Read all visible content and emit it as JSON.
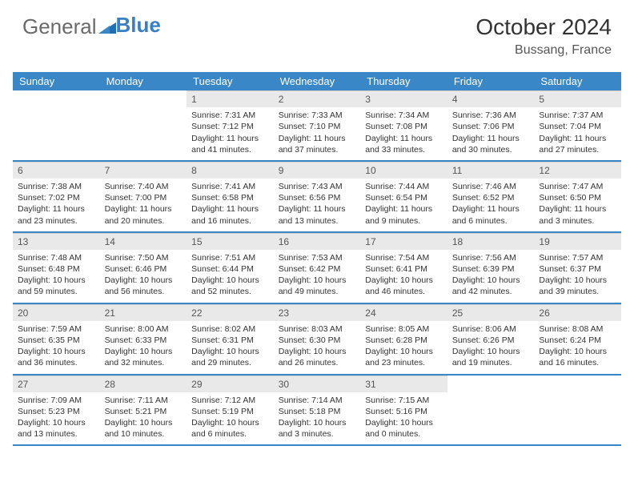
{
  "brand": {
    "part1": "General",
    "part2": "Blue"
  },
  "title": "October 2024",
  "location": "Bussang, France",
  "colors": {
    "header_bg": "#3a87c7",
    "header_text": "#ffffff",
    "daynum_bg": "#e9e9e9",
    "border": "#3a87c7",
    "text": "#333333"
  },
  "day_names": [
    "Sunday",
    "Monday",
    "Tuesday",
    "Wednesday",
    "Thursday",
    "Friday",
    "Saturday"
  ],
  "weeks": [
    [
      null,
      null,
      {
        "n": "1",
        "sr": "Sunrise: 7:31 AM",
        "ss": "Sunset: 7:12 PM",
        "dl": "Daylight: 11 hours and 41 minutes."
      },
      {
        "n": "2",
        "sr": "Sunrise: 7:33 AM",
        "ss": "Sunset: 7:10 PM",
        "dl": "Daylight: 11 hours and 37 minutes."
      },
      {
        "n": "3",
        "sr": "Sunrise: 7:34 AM",
        "ss": "Sunset: 7:08 PM",
        "dl": "Daylight: 11 hours and 33 minutes."
      },
      {
        "n": "4",
        "sr": "Sunrise: 7:36 AM",
        "ss": "Sunset: 7:06 PM",
        "dl": "Daylight: 11 hours and 30 minutes."
      },
      {
        "n": "5",
        "sr": "Sunrise: 7:37 AM",
        "ss": "Sunset: 7:04 PM",
        "dl": "Daylight: 11 hours and 27 minutes."
      }
    ],
    [
      {
        "n": "6",
        "sr": "Sunrise: 7:38 AM",
        "ss": "Sunset: 7:02 PM",
        "dl": "Daylight: 11 hours and 23 minutes."
      },
      {
        "n": "7",
        "sr": "Sunrise: 7:40 AM",
        "ss": "Sunset: 7:00 PM",
        "dl": "Daylight: 11 hours and 20 minutes."
      },
      {
        "n": "8",
        "sr": "Sunrise: 7:41 AM",
        "ss": "Sunset: 6:58 PM",
        "dl": "Daylight: 11 hours and 16 minutes."
      },
      {
        "n": "9",
        "sr": "Sunrise: 7:43 AM",
        "ss": "Sunset: 6:56 PM",
        "dl": "Daylight: 11 hours and 13 minutes."
      },
      {
        "n": "10",
        "sr": "Sunrise: 7:44 AM",
        "ss": "Sunset: 6:54 PM",
        "dl": "Daylight: 11 hours and 9 minutes."
      },
      {
        "n": "11",
        "sr": "Sunrise: 7:46 AM",
        "ss": "Sunset: 6:52 PM",
        "dl": "Daylight: 11 hours and 6 minutes."
      },
      {
        "n": "12",
        "sr": "Sunrise: 7:47 AM",
        "ss": "Sunset: 6:50 PM",
        "dl": "Daylight: 11 hours and 3 minutes."
      }
    ],
    [
      {
        "n": "13",
        "sr": "Sunrise: 7:48 AM",
        "ss": "Sunset: 6:48 PM",
        "dl": "Daylight: 10 hours and 59 minutes."
      },
      {
        "n": "14",
        "sr": "Sunrise: 7:50 AM",
        "ss": "Sunset: 6:46 PM",
        "dl": "Daylight: 10 hours and 56 minutes."
      },
      {
        "n": "15",
        "sr": "Sunrise: 7:51 AM",
        "ss": "Sunset: 6:44 PM",
        "dl": "Daylight: 10 hours and 52 minutes."
      },
      {
        "n": "16",
        "sr": "Sunrise: 7:53 AM",
        "ss": "Sunset: 6:42 PM",
        "dl": "Daylight: 10 hours and 49 minutes."
      },
      {
        "n": "17",
        "sr": "Sunrise: 7:54 AM",
        "ss": "Sunset: 6:41 PM",
        "dl": "Daylight: 10 hours and 46 minutes."
      },
      {
        "n": "18",
        "sr": "Sunrise: 7:56 AM",
        "ss": "Sunset: 6:39 PM",
        "dl": "Daylight: 10 hours and 42 minutes."
      },
      {
        "n": "19",
        "sr": "Sunrise: 7:57 AM",
        "ss": "Sunset: 6:37 PM",
        "dl": "Daylight: 10 hours and 39 minutes."
      }
    ],
    [
      {
        "n": "20",
        "sr": "Sunrise: 7:59 AM",
        "ss": "Sunset: 6:35 PM",
        "dl": "Daylight: 10 hours and 36 minutes."
      },
      {
        "n": "21",
        "sr": "Sunrise: 8:00 AM",
        "ss": "Sunset: 6:33 PM",
        "dl": "Daylight: 10 hours and 32 minutes."
      },
      {
        "n": "22",
        "sr": "Sunrise: 8:02 AM",
        "ss": "Sunset: 6:31 PM",
        "dl": "Daylight: 10 hours and 29 minutes."
      },
      {
        "n": "23",
        "sr": "Sunrise: 8:03 AM",
        "ss": "Sunset: 6:30 PM",
        "dl": "Daylight: 10 hours and 26 minutes."
      },
      {
        "n": "24",
        "sr": "Sunrise: 8:05 AM",
        "ss": "Sunset: 6:28 PM",
        "dl": "Daylight: 10 hours and 23 minutes."
      },
      {
        "n": "25",
        "sr": "Sunrise: 8:06 AM",
        "ss": "Sunset: 6:26 PM",
        "dl": "Daylight: 10 hours and 19 minutes."
      },
      {
        "n": "26",
        "sr": "Sunrise: 8:08 AM",
        "ss": "Sunset: 6:24 PM",
        "dl": "Daylight: 10 hours and 16 minutes."
      }
    ],
    [
      {
        "n": "27",
        "sr": "Sunrise: 7:09 AM",
        "ss": "Sunset: 5:23 PM",
        "dl": "Daylight: 10 hours and 13 minutes."
      },
      {
        "n": "28",
        "sr": "Sunrise: 7:11 AM",
        "ss": "Sunset: 5:21 PM",
        "dl": "Daylight: 10 hours and 10 minutes."
      },
      {
        "n": "29",
        "sr": "Sunrise: 7:12 AM",
        "ss": "Sunset: 5:19 PM",
        "dl": "Daylight: 10 hours and 6 minutes."
      },
      {
        "n": "30",
        "sr": "Sunrise: 7:14 AM",
        "ss": "Sunset: 5:18 PM",
        "dl": "Daylight: 10 hours and 3 minutes."
      },
      {
        "n": "31",
        "sr": "Sunrise: 7:15 AM",
        "ss": "Sunset: 5:16 PM",
        "dl": "Daylight: 10 hours and 0 minutes."
      },
      null,
      null
    ]
  ]
}
